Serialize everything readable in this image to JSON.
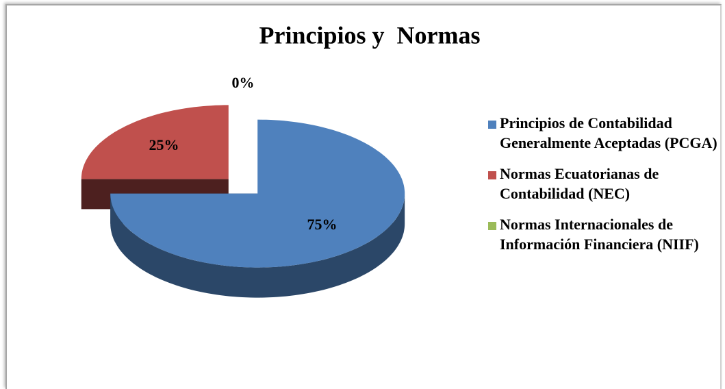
{
  "chart_data": {
    "type": "pie",
    "title": "Principios y  Normas",
    "categories": [
      "Principios de Contabilidad Generalmente Aceptadas (PCGA)",
      "Normas Ecuatorianas de Contabilidad (NEC)",
      "Normas Internacionales de Información Financiera (NIIF)"
    ],
    "values": [
      75,
      25,
      0
    ],
    "value_labels": [
      "75%",
      "25%",
      "0%"
    ],
    "colors": [
      "#4f81bd",
      "#c0504d",
      "#9bbb59"
    ],
    "legend": "right"
  }
}
